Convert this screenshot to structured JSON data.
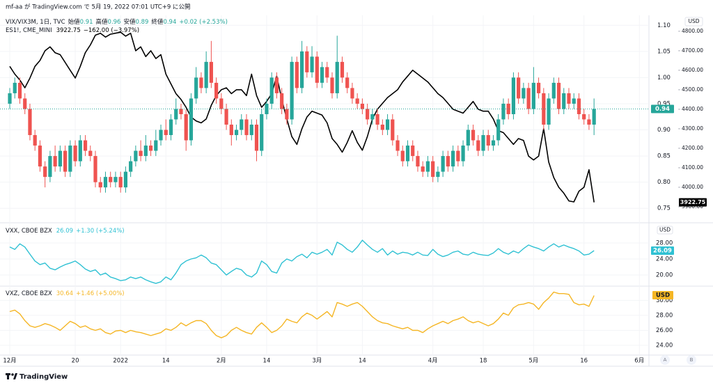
{
  "header": "mf-aa が TradingView.com で 5月 19, 2022 07:01 UTC+9 に公開",
  "footer": "TradingView",
  "buttons": [
    "A",
    "B"
  ],
  "xlim": [
    -1.94,
    126.9
  ],
  "xticks": [
    {
      "value": 0,
      "label": "12月"
    },
    {
      "value": 13,
      "label": "20"
    },
    {
      "value": 22,
      "label": "2022"
    },
    {
      "value": 31,
      "label": "14"
    },
    {
      "value": 42,
      "label": "2月"
    },
    {
      "value": 51,
      "label": "14"
    },
    {
      "value": 61,
      "label": "3月"
    },
    {
      "value": 70,
      "label": "14"
    },
    {
      "value": 84,
      "label": "4月"
    },
    {
      "value": 94,
      "label": "18"
    },
    {
      "value": 104,
      "label": "5月"
    },
    {
      "value": 114,
      "label": "16"
    },
    {
      "value": 125,
      "label": "6月"
    }
  ],
  "chart_data": [
    {
      "type": "candlestick",
      "title": "VIX/VIX3M, 1日, TVC",
      "currency": "USD",
      "ohlc_labels": [
        "始値",
        "高値",
        "安値",
        "終値"
      ],
      "change": "+0.02 (+2.53%)",
      "up_color": "#26a69a",
      "down_color": "#ef5350",
      "ylim": [
        0.725,
        1.115
      ],
      "yticks": [
        {
          "value": 1.1,
          "label": "1.10"
        },
        {
          "value": 1.05,
          "label": "1.05"
        },
        {
          "value": 1.0,
          "label": "1.00"
        },
        {
          "value": 0.95,
          "label": "0.95"
        },
        {
          "value": 0.9,
          "label": "0.90"
        },
        {
          "value": 0.85,
          "label": "0.85"
        },
        {
          "value": 0.8,
          "label": "0.80"
        },
        {
          "value": 0.75,
          "label": "0.75"
        }
      ],
      "y2lim": [
        3825,
        4871
      ],
      "y2ticks": [
        {
          "value": 4800,
          "label": "4800.00"
        },
        {
          "value": 4700,
          "label": "4700.00"
        },
        {
          "value": 4600,
          "label": "4600.00"
        },
        {
          "value": 4500,
          "label": "4500.00"
        },
        {
          "value": 4400,
          "label": "4400.00"
        },
        {
          "value": 4300,
          "label": "4300.00"
        },
        {
          "value": 4200,
          "label": "4200.00"
        },
        {
          "value": 4100,
          "label": "4100.00"
        },
        {
          "value": 4000,
          "label": "4000.00"
        },
        {
          "value": 3900,
          "label": "3900.00"
        }
      ],
      "open": [
        0.95,
        0.97,
        0.99,
        0.96,
        0.94,
        0.89,
        0.87,
        0.83,
        0.81,
        0.85,
        0.83,
        0.86,
        0.82,
        0.87,
        0.84,
        0.88,
        0.86,
        0.85,
        0.8,
        0.79,
        0.81,
        0.8,
        0.81,
        0.79,
        0.82,
        0.84,
        0.86,
        0.85,
        0.87,
        0.86,
        0.88,
        0.9,
        0.89,
        0.92,
        0.94,
        0.93,
        0.88,
        0.96,
        1.0,
        0.98,
        1.03,
        0.99,
        0.96,
        0.94,
        0.91,
        0.89,
        0.9,
        0.92,
        0.89,
        0.91,
        0.86,
        0.93,
        0.95,
        1.0,
        0.97,
        0.94,
        0.92,
        1.03,
        0.98,
        1.05,
        1.01,
        1.04,
        0.99,
        1.02,
        1.0,
        0.97,
        1.03,
        1.0,
        0.98,
        0.96,
        0.95,
        0.94,
        0.92,
        0.93,
        0.91,
        0.9,
        0.92,
        0.88,
        0.86,
        0.84,
        0.87,
        0.85,
        0.83,
        0.82,
        0.84,
        0.81,
        0.82,
        0.85,
        0.83,
        0.86,
        0.84,
        0.87,
        0.9,
        0.88,
        0.86,
        0.89,
        0.87,
        0.88,
        0.92,
        0.95,
        0.93,
        1.0,
        0.96,
        0.98,
        0.94,
        0.99,
        0.97,
        0.91,
        0.96,
        0.99,
        0.94,
        0.97,
        0.95,
        0.96,
        0.93,
        0.92,
        0.91
      ],
      "high": [
        0.98,
        1.0,
        1.0,
        0.97,
        0.95,
        0.9,
        0.88,
        0.84,
        0.86,
        0.87,
        0.87,
        0.87,
        0.88,
        0.88,
        0.89,
        0.89,
        0.87,
        0.86,
        0.81,
        0.82,
        0.82,
        0.82,
        0.82,
        0.83,
        0.85,
        0.87,
        0.88,
        0.89,
        0.88,
        0.9,
        0.91,
        0.92,
        0.93,
        0.96,
        0.95,
        0.94,
        0.97,
        1.02,
        1.01,
        1.05,
        1.07,
        1.0,
        0.97,
        0.95,
        0.92,
        0.91,
        0.93,
        0.93,
        0.92,
        0.92,
        0.94,
        0.96,
        1.01,
        1.01,
        0.98,
        0.95,
        1.04,
        1.04,
        1.07,
        1.06,
        1.06,
        1.05,
        1.03,
        1.03,
        1.01,
        1.08,
        1.04,
        1.01,
        0.99,
        0.97,
        0.96,
        0.95,
        0.94,
        0.94,
        0.92,
        0.93,
        0.93,
        0.89,
        0.87,
        0.88,
        0.88,
        0.86,
        0.84,
        0.85,
        0.85,
        0.83,
        0.86,
        0.86,
        0.87,
        0.87,
        0.88,
        0.91,
        0.91,
        0.89,
        0.9,
        0.9,
        0.89,
        0.93,
        0.96,
        0.96,
        1.01,
        1.01,
        0.99,
        0.99,
        1.02,
        1.0,
        0.98,
        0.97,
        1.0,
        1.0,
        0.98,
        0.98,
        0.97,
        0.97,
        0.94,
        0.93,
        0.96
      ],
      "low": [
        0.94,
        0.96,
        0.95,
        0.93,
        0.88,
        0.86,
        0.82,
        0.79,
        0.8,
        0.82,
        0.82,
        0.81,
        0.81,
        0.83,
        0.83,
        0.85,
        0.84,
        0.79,
        0.78,
        0.78,
        0.79,
        0.79,
        0.78,
        0.78,
        0.81,
        0.83,
        0.84,
        0.84,
        0.85,
        0.85,
        0.87,
        0.88,
        0.88,
        0.91,
        0.92,
        0.86,
        0.87,
        0.95,
        0.97,
        0.97,
        0.98,
        0.95,
        0.93,
        0.9,
        0.87,
        0.88,
        0.89,
        0.88,
        0.88,
        0.84,
        0.85,
        0.92,
        0.94,
        0.96,
        0.93,
        0.91,
        0.91,
        0.97,
        0.97,
        1.0,
        1.0,
        0.98,
        0.98,
        0.99,
        0.96,
        0.96,
        0.99,
        0.97,
        0.95,
        0.94,
        0.93,
        0.91,
        0.91,
        0.9,
        0.89,
        0.89,
        0.87,
        0.85,
        0.83,
        0.83,
        0.84,
        0.82,
        0.81,
        0.81,
        0.8,
        0.8,
        0.81,
        0.82,
        0.82,
        0.83,
        0.83,
        0.86,
        0.87,
        0.85,
        0.85,
        0.86,
        0.86,
        0.87,
        0.91,
        0.92,
        0.92,
        0.95,
        0.95,
        0.93,
        0.93,
        0.96,
        0.9,
        0.9,
        0.95,
        0.93,
        0.93,
        0.94,
        0.94,
        0.92,
        0.91,
        0.9,
        0.89
      ],
      "close": [
        0.97,
        0.99,
        0.96,
        0.94,
        0.89,
        0.87,
        0.83,
        0.81,
        0.85,
        0.83,
        0.86,
        0.82,
        0.87,
        0.84,
        0.88,
        0.86,
        0.85,
        0.8,
        0.79,
        0.81,
        0.8,
        0.81,
        0.79,
        0.82,
        0.84,
        0.86,
        0.85,
        0.87,
        0.86,
        0.88,
        0.9,
        0.89,
        0.92,
        0.94,
        0.93,
        0.88,
        0.96,
        1.0,
        0.98,
        1.03,
        0.99,
        0.96,
        0.94,
        0.91,
        0.89,
        0.9,
        0.92,
        0.89,
        0.91,
        0.86,
        0.93,
        0.95,
        1.0,
        0.97,
        0.94,
        0.92,
        1.03,
        0.98,
        1.05,
        1.01,
        1.04,
        0.99,
        1.02,
        1.0,
        0.97,
        1.03,
        1.0,
        0.98,
        0.96,
        0.95,
        0.94,
        0.92,
        0.93,
        0.91,
        0.9,
        0.92,
        0.88,
        0.86,
        0.84,
        0.87,
        0.85,
        0.83,
        0.82,
        0.84,
        0.81,
        0.82,
        0.85,
        0.83,
        0.86,
        0.84,
        0.87,
        0.9,
        0.88,
        0.86,
        0.89,
        0.87,
        0.88,
        0.92,
        0.95,
        0.93,
        1.0,
        0.96,
        0.98,
        0.94,
        0.99,
        0.97,
        0.91,
        0.96,
        0.99,
        0.94,
        0.97,
        0.95,
        0.96,
        0.93,
        0.92,
        0.91,
        0.94
      ],
      "series": [
        {
          "name": "ES1!, CME_MINI",
          "color": "#000000",
          "axis": "y2",
          "change": "−162.00 (−3.97%)",
          "values": [
            4620,
            4580,
            4550,
            4510,
            4560,
            4620,
            4650,
            4700,
            4720,
            4690,
            4680,
            4640,
            4600,
            4560,
            4620,
            4690,
            4730,
            4780,
            4790,
            4770,
            4785,
            4790,
            4795,
            4775,
            4790,
            4700,
            4720,
            4670,
            4700,
            4660,
            4680,
            4580,
            4530,
            4480,
            4450,
            4410,
            4360,
            4340,
            4330,
            4350,
            4420,
            4470,
            4500,
            4510,
            4480,
            4500,
            4500,
            4470,
            4580,
            4470,
            4410,
            4440,
            4480,
            4570,
            4450,
            4350,
            4260,
            4220,
            4300,
            4360,
            4390,
            4380,
            4370,
            4330,
            4250,
            4220,
            4180,
            4230,
            4290,
            4230,
            4190,
            4260,
            4350,
            4400,
            4430,
            4460,
            4480,
            4500,
            4540,
            4570,
            4600,
            4580,
            4560,
            4540,
            4510,
            4480,
            4460,
            4430,
            4400,
            4390,
            4380,
            4410,
            4440,
            4400,
            4390,
            4390,
            4350,
            4290,
            4280,
            4250,
            4220,
            4250,
            4240,
            4160,
            4140,
            4160,
            4300,
            4130,
            4050,
            4000,
            3970,
            3930,
            3925,
            3980,
            4000,
            4090,
            3922.75
          ]
        }
      ]
    },
    {
      "type": "line",
      "title": "VXX, CBOE BZX",
      "currency": "USD",
      "ylim": [
        17.4,
        32.7
      ],
      "yticks": [
        {
          "value": 28,
          "label": "28.00"
        },
        {
          "value": 24,
          "label": "24.00"
        },
        {
          "value": 20,
          "label": "20.00"
        }
      ],
      "series": [
        {
          "name": "VXX, CBOE BZX",
          "color": "#2fc1d3",
          "change": "+1.30 (+5.24%)",
          "values": [
            27.0,
            26.4,
            27.8,
            27.0,
            25.2,
            23.5,
            22.6,
            23.0,
            21.7,
            21.3,
            22.0,
            22.6,
            23.0,
            23.5,
            22.6,
            21.5,
            20.9,
            21.3,
            20.0,
            20.5,
            19.5,
            19.1,
            18.6,
            18.8,
            19.5,
            19.1,
            19.5,
            18.8,
            18.3,
            17.9,
            18.3,
            19.5,
            18.8,
            20.5,
            22.6,
            23.5,
            24.0,
            24.3,
            25.0,
            24.3,
            23.0,
            22.6,
            21.3,
            20.0,
            20.9,
            21.7,
            21.3,
            20.0,
            19.5,
            20.5,
            23.5,
            22.6,
            20.9,
            20.5,
            23.0,
            24.0,
            23.5,
            24.6,
            25.2,
            24.3,
            25.7,
            25.2,
            25.7,
            26.4,
            25.0,
            28.2,
            27.5,
            26.4,
            25.7,
            27.0,
            28.7,
            27.5,
            26.4,
            25.7,
            26.6,
            25.0,
            26.0,
            25.2,
            25.7,
            25.5,
            25.0,
            25.7,
            25.0,
            24.9,
            26.4,
            25.2,
            24.6,
            25.0,
            25.7,
            26.0,
            25.2,
            25.0,
            25.7,
            25.2,
            25.0,
            24.9,
            25.5,
            26.6,
            25.7,
            25.2,
            26.0,
            25.5,
            26.6,
            27.5,
            27.0,
            26.6,
            26.0,
            27.0,
            27.8,
            27.0,
            27.5,
            27.0,
            26.6,
            26.0,
            25.0,
            25.2,
            26.09
          ]
        }
      ]
    },
    {
      "type": "line",
      "title": "VXZ, CBOE BZX",
      "currency": "USD",
      "ylim": [
        22.7,
        31.8
      ],
      "yticks": [
        {
          "value": 30,
          "label": "30.00"
        },
        {
          "value": 28,
          "label": "28.00"
        },
        {
          "value": 26,
          "label": "26.00"
        },
        {
          "value": 24,
          "label": "24.00"
        }
      ],
      "series": [
        {
          "name": "VXZ, CBOE BZX",
          "color": "#f5b625",
          "change": "+1.46 (+5.00%)",
          "values": [
            28.5,
            28.7,
            28.2,
            27.3,
            26.6,
            26.4,
            26.6,
            26.9,
            26.7,
            26.4,
            26.0,
            26.6,
            27.2,
            26.9,
            26.4,
            26.6,
            26.2,
            26.0,
            26.2,
            25.7,
            25.5,
            25.9,
            26.0,
            25.7,
            26.0,
            25.8,
            25.7,
            25.5,
            25.3,
            25.5,
            25.7,
            26.2,
            26.0,
            26.4,
            27.0,
            26.6,
            27.0,
            27.3,
            27.3,
            26.9,
            26.0,
            25.3,
            25.0,
            25.3,
            26.0,
            26.4,
            26.0,
            25.7,
            25.5,
            26.4,
            27.0,
            26.4,
            25.7,
            26.0,
            26.6,
            27.5,
            27.2,
            27.0,
            27.8,
            28.3,
            28.0,
            27.5,
            28.0,
            28.5,
            27.8,
            29.7,
            29.5,
            29.2,
            29.5,
            29.7,
            29.2,
            28.5,
            27.8,
            27.3,
            27.0,
            26.9,
            26.6,
            26.4,
            26.2,
            26.4,
            26.0,
            26.0,
            25.7,
            26.2,
            26.6,
            26.9,
            27.2,
            26.9,
            27.3,
            27.5,
            27.8,
            27.3,
            27.0,
            27.2,
            26.9,
            26.6,
            26.9,
            27.5,
            28.3,
            28.0,
            29.0,
            29.4,
            29.5,
            29.7,
            29.5,
            28.8,
            29.7,
            30.3,
            31.1,
            30.9,
            30.9,
            30.8,
            29.7,
            29.4,
            29.5,
            29.2,
            30.64
          ]
        }
      ]
    }
  ]
}
